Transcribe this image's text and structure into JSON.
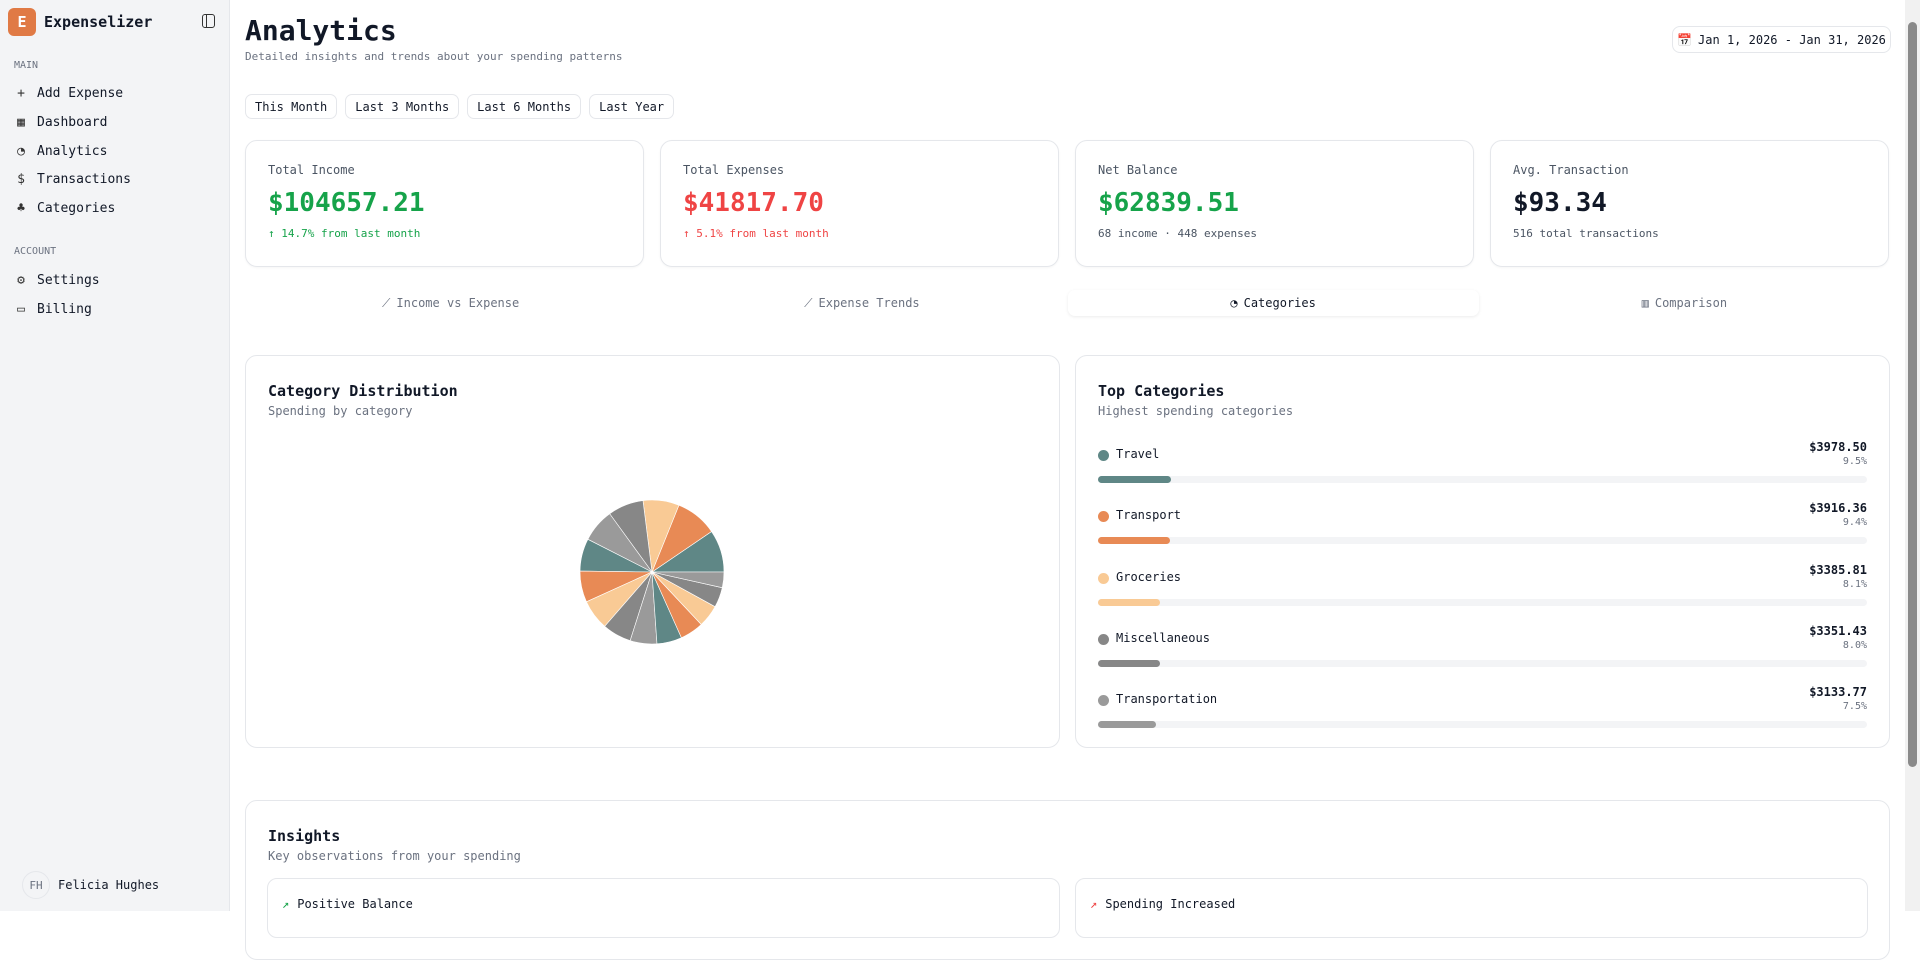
{
  "app": {
    "logo_letter": "E",
    "name": "Expenselizer"
  },
  "sidebar": {
    "main_label": "MAIN",
    "account_label": "ACCOUNT",
    "main_items": [
      {
        "label": "Add Expense",
        "icon": "+"
      },
      {
        "label": "Dashboard",
        "icon": "▦"
      },
      {
        "label": "Analytics",
        "icon": "◔"
      },
      {
        "label": "Transactions",
        "icon": "$"
      },
      {
        "label": "Categories",
        "icon": "♣"
      }
    ],
    "account_items": [
      {
        "label": "Settings",
        "icon": "⚙"
      },
      {
        "label": "Billing",
        "icon": "▭"
      }
    ],
    "user": {
      "initials": "FH",
      "name": "Felicia Hughes"
    }
  },
  "header": {
    "title": "Analytics",
    "subtitle": "Detailed insights and trends about your spending patterns",
    "date_range": "Jan 1, 2026 - Jan 31, 2026"
  },
  "periods": [
    "This Month",
    "Last 3 Months",
    "Last 6 Months",
    "Last Year"
  ],
  "kpis": [
    {
      "label": "Total Income",
      "value": "$104657.21",
      "note": "↑ 14.7% from last month",
      "color": "#16a34a"
    },
    {
      "label": "Total Expenses",
      "value": "$41817.70",
      "note": "↑ 5.1% from last month",
      "color": "#ef4444"
    },
    {
      "label": "Net Balance",
      "value": "$62839.51",
      "note": "68 income · 448 expenses",
      "color": "#16a34a"
    },
    {
      "label": "Avg. Transaction",
      "value": "$93.34",
      "note": "516 total transactions",
      "color": "#111827"
    }
  ],
  "tabs": [
    {
      "label": "Income vs Expense",
      "icon": "📈"
    },
    {
      "label": "Expense Trends",
      "icon": "📈"
    },
    {
      "label": "Categories",
      "icon": "◔"
    },
    {
      "label": "Comparison",
      "icon": "📊"
    }
  ],
  "distribution": {
    "title": "Category Distribution",
    "subtitle": "Spending by category"
  },
  "top": {
    "title": "Top Categories",
    "subtitle": "Highest spending categories",
    "items": [
      {
        "name": "Travel",
        "amount": "$3978.50",
        "percent": "9.5%",
        "share": 9.5,
        "color": "#5f8786"
      },
      {
        "name": "Transport",
        "amount": "$3916.36",
        "percent": "9.4%",
        "share": 9.4,
        "color": "#e88a55"
      },
      {
        "name": "Groceries",
        "amount": "$3385.81",
        "percent": "8.1%",
        "share": 8.1,
        "color": "#f9ca95"
      },
      {
        "name": "Miscellaneous",
        "amount": "$3351.43",
        "percent": "8.0%",
        "share": 8.0,
        "color": "#878787"
      },
      {
        "name": "Transportation",
        "amount": "$3133.77",
        "percent": "7.5%",
        "share": 7.5,
        "color": "#9a9a9a"
      }
    ]
  },
  "chart_data": {
    "type": "pie",
    "title": "Category Distribution",
    "values": [
      9.5,
      9.4,
      8.1,
      8.0,
      7.5,
      7.3,
      7.0,
      6.8,
      6.5,
      6.0,
      5.6,
      5.3,
      5.0,
      4.5,
      3.5
    ],
    "colors": [
      "#5f8786",
      "#e88a55",
      "#f9ca95",
      "#878787",
      "#9a9a9a"
    ]
  },
  "insights": {
    "title": "Insights",
    "subtitle": "Key observations from your spending",
    "items": [
      {
        "label": "Positive Balance",
        "color": "#16a34a"
      },
      {
        "label": "Spending Increased",
        "color": "#ef4444"
      }
    ]
  }
}
